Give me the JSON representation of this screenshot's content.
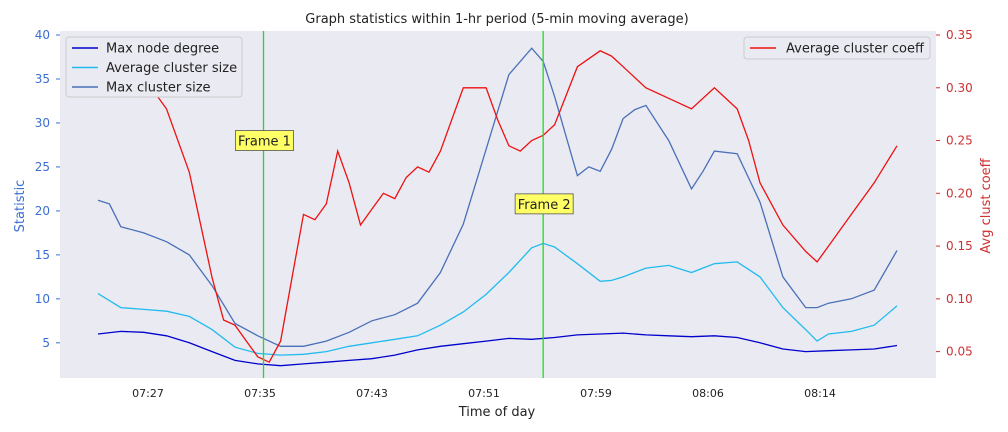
{
  "chart_data": {
    "type": "line",
    "title": "Graph statistics within 1-hr period (5-min moving average)",
    "xlabel": "Time of day",
    "ylabel": "Statistic",
    "y2label": "Avg clust coeff",
    "x_ticks": [
      "07:27",
      "07:35",
      "07:43",
      "07:51",
      "07:59",
      "08:06",
      "08:14"
    ],
    "xlim": [
      0,
      70
    ],
    "ylim": [
      1,
      40
    ],
    "y_ticks": [
      5,
      10,
      15,
      20,
      25,
      30,
      35,
      40
    ],
    "y2lim": [
      0.025,
      0.35
    ],
    "y2_ticks": [
      "0.05",
      "0.10",
      "0.15",
      "0.20",
      "0.25",
      "0.30",
      "0.35"
    ],
    "grid": false,
    "background": "#eaeaf2",
    "colors": {
      "axis_left": "#3b6fd1",
      "axis_right": "#cc3333",
      "annotation_fill": "#ffff66",
      "vline": "#22dd22"
    },
    "series": [
      {
        "name": "Max node degree",
        "axis": "left",
        "color": "#0000cc",
        "x": [
          0,
          2,
          4,
          6,
          8,
          10,
          12,
          14,
          16,
          18,
          20,
          22,
          24,
          26,
          28,
          30,
          32,
          34,
          36,
          38,
          40,
          42,
          44,
          46,
          48,
          50,
          52,
          54,
          56,
          58,
          60,
          62,
          64,
          66,
          68,
          70
        ],
        "y": [
          6.0,
          6.3,
          6.2,
          5.8,
          5.0,
          4.0,
          3.0,
          2.6,
          2.4,
          2.6,
          2.8,
          3.0,
          3.2,
          3.6,
          4.2,
          4.6,
          4.9,
          5.2,
          5.5,
          5.4,
          5.6,
          5.9,
          6.0,
          6.1,
          5.9,
          5.8,
          5.7,
          5.8,
          5.6,
          5.0,
          4.3,
          4.0,
          4.1,
          4.2,
          4.3,
          4.7
        ]
      },
      {
        "name": "Average cluster size",
        "axis": "left",
        "color": "#22bbee",
        "x": [
          0,
          2,
          4,
          6,
          8,
          10,
          12,
          14,
          16,
          18,
          20,
          22,
          24,
          26,
          28,
          30,
          32,
          34,
          36,
          38,
          39,
          40,
          42,
          44,
          45,
          46,
          48,
          50,
          52,
          54,
          56,
          58,
          60,
          62,
          63,
          64,
          66,
          68,
          70
        ],
        "y": [
          10.6,
          9.0,
          8.8,
          8.6,
          8.0,
          6.5,
          4.5,
          3.8,
          3.6,
          3.7,
          4.0,
          4.6,
          5.0,
          5.4,
          5.8,
          7.0,
          8.5,
          10.5,
          13.0,
          15.8,
          16.3,
          15.9,
          14.0,
          12.0,
          12.1,
          12.5,
          13.5,
          13.8,
          13.0,
          14.0,
          14.2,
          12.5,
          9.0,
          6.5,
          5.2,
          6.0,
          6.3,
          7.0,
          9.2
        ]
      },
      {
        "name": "Max cluster size",
        "axis": "left",
        "color": "#4a70b8",
        "x": [
          0,
          1,
          2,
          4,
          6,
          8,
          10,
          12,
          14,
          16,
          18,
          20,
          22,
          24,
          26,
          28,
          30,
          32,
          34,
          36,
          37,
          38,
          39,
          40,
          42,
          43,
          44,
          45,
          46,
          47,
          48,
          50,
          52,
          53,
          54,
          56,
          58,
          60,
          62,
          63,
          64,
          66,
          68,
          70
        ],
        "y": [
          21.2,
          20.8,
          18.2,
          17.5,
          16.5,
          15.0,
          11.5,
          7.2,
          5.8,
          4.6,
          4.6,
          5.2,
          6.2,
          7.5,
          8.2,
          9.5,
          13.0,
          18.5,
          27.0,
          35.5,
          37.0,
          38.5,
          37.0,
          33.0,
          24.0,
          25.0,
          24.5,
          27.0,
          30.5,
          31.5,
          32.0,
          28.0,
          22.5,
          24.5,
          26.8,
          26.5,
          21.0,
          12.5,
          9.0,
          9.0,
          9.5,
          10.0,
          11.0,
          15.5
        ]
      },
      {
        "name": "Average cluster coeff",
        "axis": "right",
        "color": "#ee1111",
        "x": [
          2,
          4,
          6,
          8,
          10,
          11,
          12,
          13,
          14,
          15,
          16,
          17,
          18,
          19,
          20,
          21,
          22,
          23,
          24,
          25,
          26,
          27,
          28,
          29,
          30,
          32,
          34,
          35,
          36,
          37,
          38,
          39,
          40,
          42,
          44,
          45,
          46,
          48,
          50,
          52,
          54,
          56,
          57,
          58,
          60,
          62,
          63,
          64,
          66,
          68,
          70
        ],
        "y": [
          0.31,
          0.31,
          0.28,
          0.22,
          0.12,
          0.08,
          0.075,
          0.06,
          0.045,
          0.04,
          0.06,
          0.12,
          0.18,
          0.175,
          0.19,
          0.24,
          0.21,
          0.17,
          0.185,
          0.2,
          0.195,
          0.215,
          0.225,
          0.22,
          0.24,
          0.3,
          0.3,
          0.27,
          0.245,
          0.24,
          0.25,
          0.255,
          0.265,
          0.32,
          0.335,
          0.33,
          0.32,
          0.3,
          0.29,
          0.28,
          0.3,
          0.28,
          0.25,
          0.21,
          0.17,
          0.145,
          0.135,
          0.15,
          0.18,
          0.21,
          0.245
        ]
      }
    ],
    "legend_left": [
      "Max node degree",
      "Average cluster size",
      "Max cluster size"
    ],
    "legend_right": [
      "Average cluster coeff"
    ],
    "legend_placement": [
      "upper-left",
      "upper-right"
    ],
    "vlines": [
      {
        "x": 14.5,
        "label": "Frame 1",
        "label_y": 28
      },
      {
        "x": 39.0,
        "label": "Frame 2",
        "label_y": 20.8
      }
    ]
  }
}
